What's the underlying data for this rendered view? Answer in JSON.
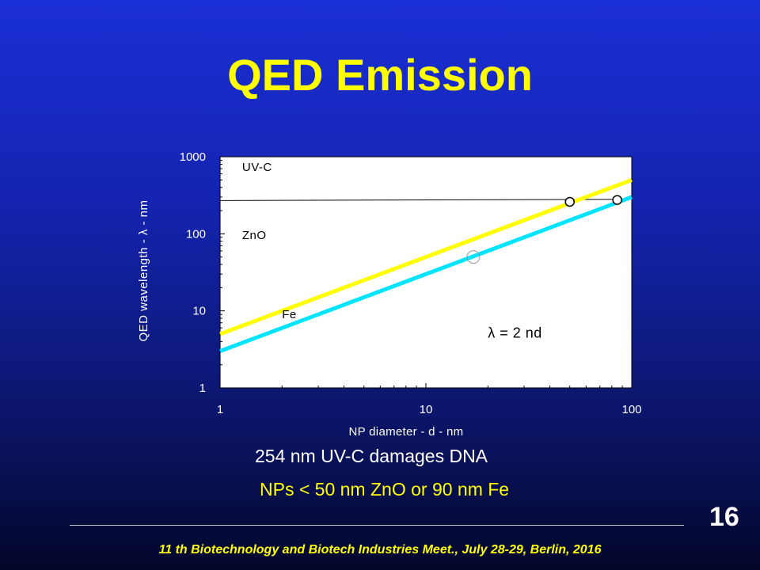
{
  "slide": {
    "title": "QED Emission",
    "caption_1": "254 nm UV-C  damages DNA",
    "caption_2": "NPs < 50 nm ZnO or 90 nm Fe",
    "page_number": "16",
    "footer": "11 th Biotechnology and Biotech Industries Meet., July 28-29, Berlin, 2016"
  },
  "colors": {
    "background": "#1424b0",
    "title": "#ffff00",
    "zno_line": "#ffff00",
    "fe_line": "#00e5ff",
    "plot_area": "#ffffff"
  },
  "chart_data": {
    "type": "line",
    "xlabel": "NP diameter - d - nm",
    "ylabel": "QED wavelength - λ - nm",
    "xscale": "log",
    "yscale": "log",
    "xlim": [
      1,
      100
    ],
    "ylim": [
      1,
      1000
    ],
    "xticks": [
      "1",
      "10",
      "100"
    ],
    "yticks": [
      "1",
      "10",
      "100",
      "1000"
    ],
    "grid": false,
    "series": [
      {
        "name": "ZnO",
        "color": "#ffff00",
        "x": [
          1,
          100
        ],
        "y": [
          5,
          500
        ]
      },
      {
        "name": "Fe",
        "color": "#00e5ff",
        "x": [
          1,
          100
        ],
        "y": [
          3,
          300
        ]
      }
    ],
    "reference_line": {
      "label": "UV-C",
      "x": [
        1,
        90
      ],
      "y": [
        270,
        280
      ]
    },
    "markers": [
      {
        "x": 50,
        "y": 260,
        "style": "filled"
      },
      {
        "x": 85,
        "y": 275,
        "style": "filled"
      },
      {
        "x": 17,
        "y": 50,
        "style": "open"
      }
    ],
    "annotations": [
      {
        "text": "UV-C",
        "x": 1.28,
        "y": 650
      },
      {
        "text": "ZnO",
        "x": 1.28,
        "y": 85
      },
      {
        "text": "Fe",
        "x": 2.0,
        "y": 8
      },
      {
        "text": "λ = 2 nd",
        "x": 20,
        "y": 4.5
      }
    ]
  }
}
